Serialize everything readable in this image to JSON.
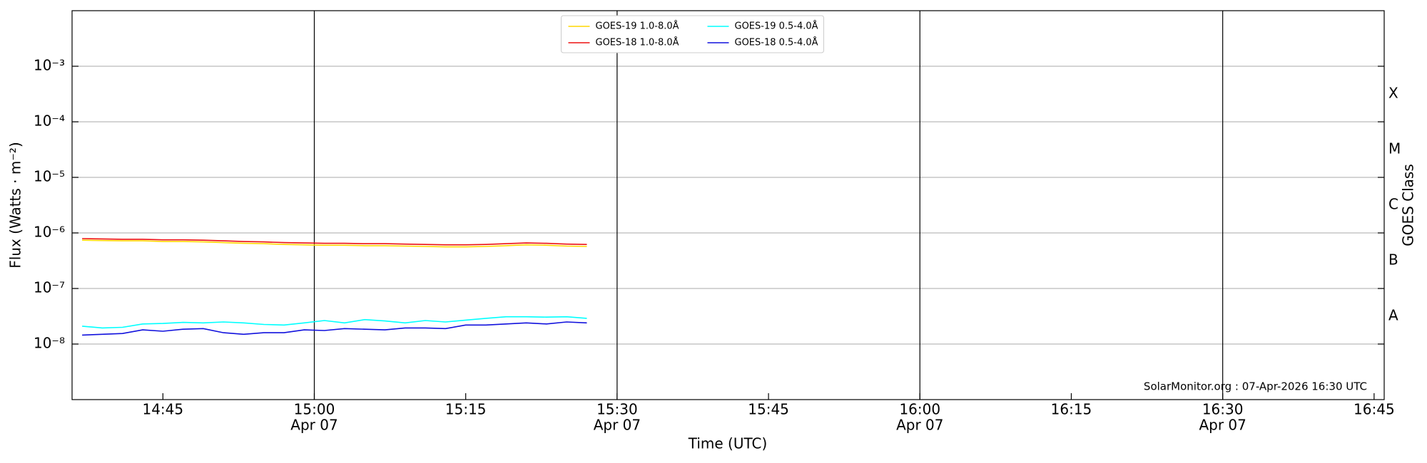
{
  "chart_data": {
    "type": "line",
    "ylabel": "Flux (Watts · m⁻²)",
    "xlabel": "Time (UTC)",
    "y2label": "GOES Class",
    "annotation": "SolarMonitor.org : 07-Apr-2026 16:30 UTC",
    "yscale": "log",
    "grid": true,
    "legend": "upper center",
    "xlim": [
      "14:36",
      "16:46"
    ],
    "xticks": [
      "14:45",
      {
        "value": "15:00",
        "label": [
          "15:00",
          "Apr 07"
        ],
        "grid": true
      },
      "15:15",
      {
        "value": "15:30",
        "label": [
          "15:30",
          "Apr 07"
        ],
        "grid": true
      },
      "15:45",
      {
        "value": "16:00",
        "label": [
          "16:00",
          "Apr 07"
        ],
        "grid": true
      },
      "16:15",
      {
        "value": "16:30",
        "label": [
          "16:30",
          "Apr 07"
        ],
        "grid": true
      },
      "16:45"
    ],
    "ylim": [
      1e-09,
      0.01
    ],
    "yticks": [
      {
        "value": 1e-08,
        "label": "10⁻⁸"
      },
      {
        "value": 1e-07,
        "label": "10⁻⁷"
      },
      {
        "value": 1e-06,
        "label": "10⁻⁶"
      },
      {
        "value": 1e-05,
        "label": "10⁻⁵"
      },
      {
        "value": 0.0001,
        "label": "10⁻⁴"
      },
      {
        "value": 0.001,
        "label": "10⁻³"
      }
    ],
    "y2lim": [
      1e-09,
      0.01
    ],
    "y2ticks": [
      {
        "value": 3.162e-08,
        "label": "A"
      },
      {
        "value": 3.162e-07,
        "label": "B"
      },
      {
        "value": 3.162e-06,
        "label": "C"
      },
      {
        "value": 3.162e-05,
        "label": "M"
      },
      {
        "value": 0.0003162,
        "label": "X"
      }
    ],
    "x": [
      "14:37",
      "14:39",
      "14:41",
      "14:43",
      "14:45",
      "14:47",
      "14:49",
      "14:51",
      "14:53",
      "14:55",
      "14:57",
      "14:59",
      "15:01",
      "15:03",
      "15:05",
      "15:07",
      "15:09",
      "15:11",
      "15:13",
      "15:15",
      "15:17",
      "15:19",
      "15:21",
      "15:23",
      "15:25",
      "15:27"
    ],
    "series": [
      {
        "name": "GOES-19 1.0-8.0Å",
        "color": "#ffd700",
        "values": [
          7.4e-07,
          7.3e-07,
          7.2e-07,
          7.2e-07,
          7e-07,
          7e-07,
          6.9e-07,
          6.7e-07,
          6.5e-07,
          6.4e-07,
          6.2e-07,
          6.1e-07,
          6e-07,
          6e-07,
          5.9e-07,
          5.9e-07,
          5.8e-07,
          5.7e-07,
          5.6e-07,
          5.6e-07,
          5.7e-07,
          5.9e-07,
          6.1e-07,
          6e-07,
          5.8e-07,
          5.7e-07
        ]
      },
      {
        "name": "GOES-18 1.0-8.0Å",
        "color": "#ee1111",
        "values": [
          7.9e-07,
          7.8e-07,
          7.7e-07,
          7.7e-07,
          7.5e-07,
          7.5e-07,
          7.4e-07,
          7.2e-07,
          7e-07,
          6.9e-07,
          6.7e-07,
          6.6e-07,
          6.5e-07,
          6.5e-07,
          6.4e-07,
          6.4e-07,
          6.3e-07,
          6.2e-07,
          6.1e-07,
          6.1e-07,
          6.2e-07,
          6.4e-07,
          6.6e-07,
          6.5e-07,
          6.3e-07,
          6.2e-07
        ]
      },
      {
        "name": "GOES-19 0.5-4.0Å",
        "color": "#00ffff",
        "values": [
          2.1e-08,
          1.95e-08,
          2e-08,
          2.3e-08,
          2.35e-08,
          2.45e-08,
          2.4e-08,
          2.5e-08,
          2.4e-08,
          2.25e-08,
          2.2e-08,
          2.4e-08,
          2.65e-08,
          2.4e-08,
          2.75e-08,
          2.6e-08,
          2.4e-08,
          2.65e-08,
          2.5e-08,
          2.7e-08,
          2.9e-08,
          3.1e-08,
          3.1e-08,
          3.05e-08,
          3.1e-08,
          2.9e-08
        ]
      },
      {
        "name": "GOES-18 0.5-4.0Å",
        "color": "#1111dd",
        "values": [
          1.45e-08,
          1.5e-08,
          1.55e-08,
          1.8e-08,
          1.7e-08,
          1.85e-08,
          1.9e-08,
          1.6e-08,
          1.5e-08,
          1.6e-08,
          1.6e-08,
          1.8e-08,
          1.75e-08,
          1.9e-08,
          1.85e-08,
          1.8e-08,
          1.95e-08,
          1.95e-08,
          1.9e-08,
          2.2e-08,
          2.2e-08,
          2.3e-08,
          2.4e-08,
          2.3e-08,
          2.5e-08,
          2.4e-08
        ]
      }
    ]
  }
}
